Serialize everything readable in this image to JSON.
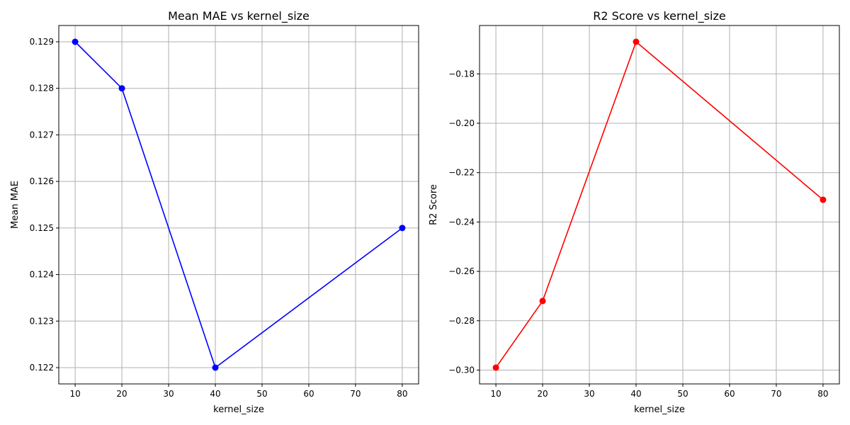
{
  "chart_data": [
    {
      "type": "line",
      "title": "Mean MAE vs kernel_size",
      "xlabel": "kernel_size",
      "ylabel": "Mean MAE",
      "x": [
        10,
        20,
        40,
        80
      ],
      "series": [
        {
          "values": [
            0.129,
            0.128,
            0.122,
            0.125
          ],
          "color": "#0000ff"
        }
      ],
      "xlim": [
        6.5,
        83.5
      ],
      "ylim": [
        0.12165,
        0.12935
      ],
      "xticks": [
        10,
        20,
        30,
        40,
        50,
        60,
        70,
        80
      ],
      "xtick_labels": [
        "10",
        "20",
        "30",
        "40",
        "50",
        "60",
        "70",
        "80"
      ],
      "yticks": [
        0.122,
        0.123,
        0.124,
        0.125,
        0.126,
        0.127,
        0.128,
        0.129
      ],
      "ytick_labels": [
        "0.122",
        "0.123",
        "0.124",
        "0.125",
        "0.126",
        "0.127",
        "0.128",
        "0.129"
      ],
      "grid": true
    },
    {
      "type": "line",
      "title": "R2 Score vs kernel_size",
      "xlabel": "kernel_size",
      "ylabel": "R2 Score",
      "x": [
        10,
        20,
        40,
        80
      ],
      "series": [
        {
          "values": [
            -0.299,
            -0.272,
            -0.167,
            -0.231
          ],
          "color": "#ff0000"
        }
      ],
      "xlim": [
        6.5,
        83.5
      ],
      "ylim": [
        -0.3056,
        -0.1604
      ],
      "xticks": [
        10,
        20,
        30,
        40,
        50,
        60,
        70,
        80
      ],
      "xtick_labels": [
        "10",
        "20",
        "30",
        "40",
        "50",
        "60",
        "70",
        "80"
      ],
      "yticks": [
        -0.3,
        -0.28,
        -0.26,
        -0.24,
        -0.22,
        -0.2,
        -0.18
      ],
      "ytick_labels": [
        "−0.30",
        "−0.28",
        "−0.26",
        "−0.24",
        "−0.22",
        "−0.20",
        "−0.18"
      ],
      "grid": true
    }
  ]
}
